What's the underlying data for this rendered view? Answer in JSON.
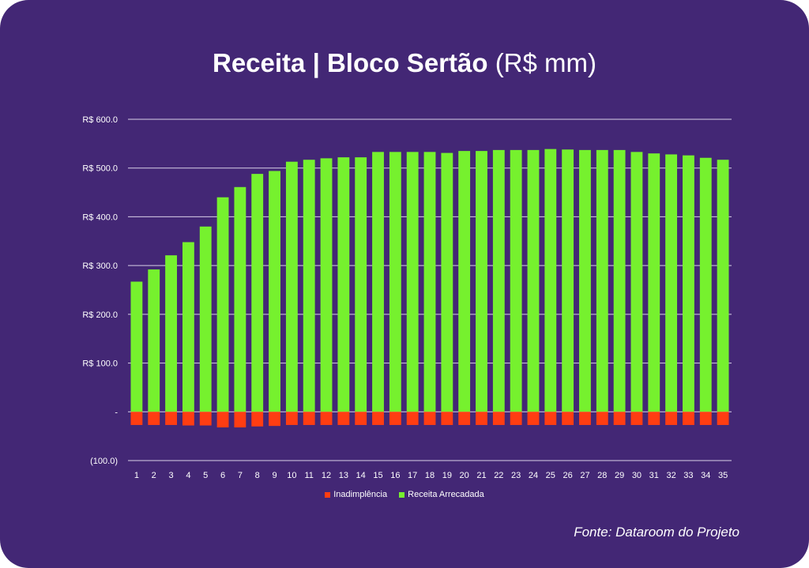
{
  "title_bold": "Receita | Bloco Sertão",
  "title_light": "(R$ mm)",
  "source": "Fonte: Dataroom do Projeto",
  "colors": {
    "background": "#432775",
    "receita": "#76F12E",
    "inadimplencia": "#FF3D12",
    "text": "#FFFFFF"
  },
  "chart_data": {
    "type": "bar",
    "stacked": true,
    "title": "Receita | Bloco Sertão (R$ mm)",
    "categories": [
      "1",
      "2",
      "3",
      "4",
      "5",
      "6",
      "7",
      "8",
      "9",
      "10",
      "11",
      "12",
      "13",
      "14",
      "15",
      "16",
      "17",
      "18",
      "19",
      "20",
      "21",
      "22",
      "23",
      "24",
      "25",
      "26",
      "27",
      "28",
      "29",
      "30",
      "31",
      "32",
      "33",
      "34",
      "35"
    ],
    "series": [
      {
        "name": "Inadimplência",
        "values": [
          -27,
          -27,
          -27,
          -28,
          -28,
          -32,
          -32,
          -30,
          -29,
          -27,
          -27,
          -27,
          -27,
          -27,
          -27,
          -27,
          -27,
          -27,
          -27,
          -27,
          -27,
          -27,
          -27,
          -27,
          -27,
          -27,
          -27,
          -27,
          -27,
          -27,
          -27,
          -27,
          -27,
          -27,
          -27
        ]
      },
      {
        "name": "Receita Arrecadada",
        "values": [
          267,
          292,
          321,
          348,
          380,
          440,
          461,
          488,
          494,
          513,
          517,
          520,
          522,
          522,
          533,
          533,
          533,
          533,
          531,
          535,
          535,
          537,
          537,
          537,
          539,
          538,
          537,
          537,
          537,
          533,
          530,
          528,
          526,
          521,
          517
        ]
      }
    ],
    "yticks": [
      -100,
      0,
      100,
      200,
      300,
      400,
      500,
      600
    ],
    "ytick_labels": [
      "(100.0)",
      "-",
      "R$ 100.0",
      "R$ 200.0",
      "R$ 300.0",
      "R$ 400.0",
      "R$ 500.0",
      "R$ 600.0"
    ],
    "ylim": [
      -100,
      600
    ],
    "grid": true,
    "legend_position": "bottom"
  }
}
